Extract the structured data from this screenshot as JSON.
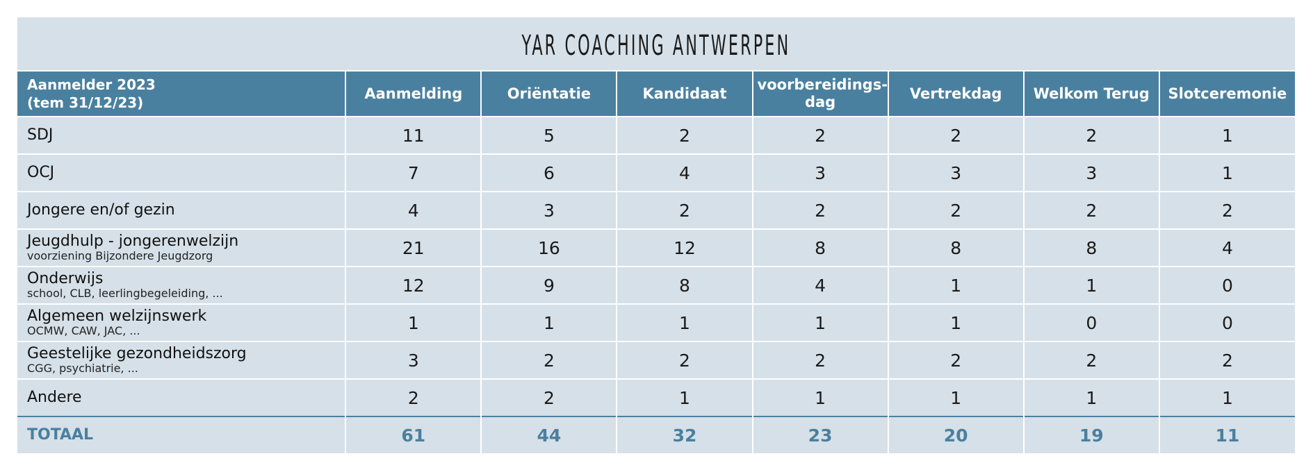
{
  "title": "YAR COACHING ANTWERPEN",
  "header": {
    "first_line1": "Aanmelder 2023",
    "first_line2": "(tem 31/12/23)",
    "columns": [
      "Aanmelding",
      "Oriëntatie",
      "Kandidaat",
      "voorbereidings-\ndag",
      "Vertrekdag",
      "Welkom Terug",
      "Slotceremonie"
    ]
  },
  "rows": [
    {
      "label": "SDJ",
      "sub": "",
      "values": [
        "11",
        "5",
        "2",
        "2",
        "2",
        "2",
        "1"
      ]
    },
    {
      "label": "OCJ",
      "sub": "",
      "values": [
        "7",
        "6",
        "4",
        "3",
        "3",
        "3",
        "1"
      ]
    },
    {
      "label": "Jongere en/of gezin",
      "sub": "",
      "values": [
        "4",
        "3",
        "2",
        "2",
        "2",
        "2",
        "2"
      ]
    },
    {
      "label": "Jeugdhulp - jongerenwelzijn",
      "sub": "voorziening Bijzondere Jeugdzorg",
      "values": [
        "21",
        "16",
        "12",
        "8",
        "8",
        "8",
        "4"
      ]
    },
    {
      "label": "Onderwijs",
      "sub": "school, CLB, leerlingbegeleiding, ...",
      "values": [
        "12",
        "9",
        "8",
        "4",
        "1",
        "1",
        "0"
      ]
    },
    {
      "label": "Algemeen welzijnswerk",
      "sub": "OCMW, CAW, JAC, ...",
      "values": [
        "1",
        "1",
        "1",
        "1",
        "1",
        "0",
        "0"
      ]
    },
    {
      "label": "Geestelijke gezondheidszorg",
      "sub": "CGG, psychiatrie, ...",
      "values": [
        "3",
        "2",
        "2",
        "2",
        "2",
        "2",
        "2"
      ]
    },
    {
      "label": "Andere",
      "sub": "",
      "values": [
        "2",
        "2",
        "1",
        "1",
        "1",
        "1",
        "1"
      ]
    }
  ],
  "total": {
    "label": "TOTAAL",
    "values": [
      "61",
      "44",
      "32",
      "23",
      "20",
      "19",
      "11"
    ]
  },
  "colors": {
    "header_bg": "#4a809f",
    "body_bg": "#d6e0e8",
    "total_text": "#4a809f"
  }
}
